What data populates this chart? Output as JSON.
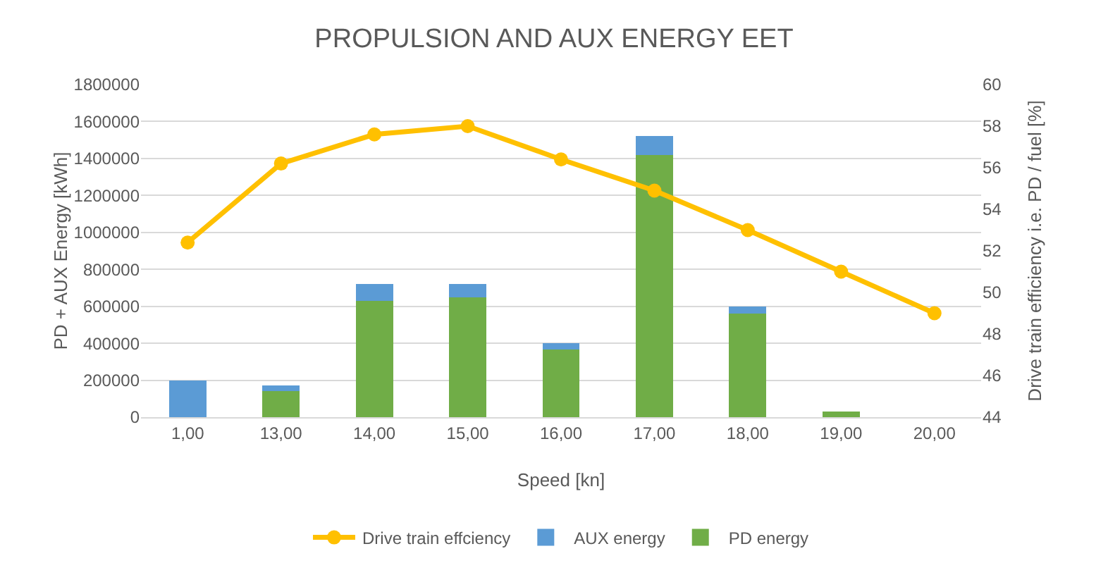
{
  "chart_data": {
    "type": "bar",
    "title": "PROPULSION AND AUX ENERGY EET",
    "xlabel": "Speed [kn]",
    "ylabel": "PD + AUX Energy [kWh]",
    "y2label": "Drive train efficiency i.e. PD / fuel [%]",
    "categories": [
      "1,00",
      "13,00",
      "14,00",
      "15,00",
      "16,00",
      "17,00",
      "18,00",
      "19,00",
      "20,00"
    ],
    "stacked": true,
    "series": [
      {
        "name": "PD energy",
        "color": "#70ad47",
        "values": [
          0,
          140000,
          630000,
          650000,
          365000,
          1420000,
          560000,
          30000,
          0
        ]
      },
      {
        "name": "AUX energy",
        "color": "#5b9bd5",
        "values": [
          200000,
          30000,
          90000,
          70000,
          35000,
          100000,
          40000,
          0,
          0
        ]
      },
      {
        "name": "Drive train effciency",
        "type": "line",
        "axis": "y2",
        "color": "#ffc000",
        "marker": "circle",
        "values": [
          52.4,
          56.2,
          57.6,
          58.0,
          56.4,
          54.9,
          53.0,
          51.0,
          49.0
        ]
      }
    ],
    "ylim": [
      0,
      1800000
    ],
    "yticks": [
      0,
      200000,
      400000,
      600000,
      800000,
      1000000,
      1200000,
      1400000,
      1600000,
      1800000
    ],
    "y2lim": [
      44,
      60
    ],
    "y2ticks": [
      44,
      46,
      48,
      50,
      52,
      54,
      56,
      58,
      60
    ],
    "grid": "y",
    "legend": "bottom"
  }
}
